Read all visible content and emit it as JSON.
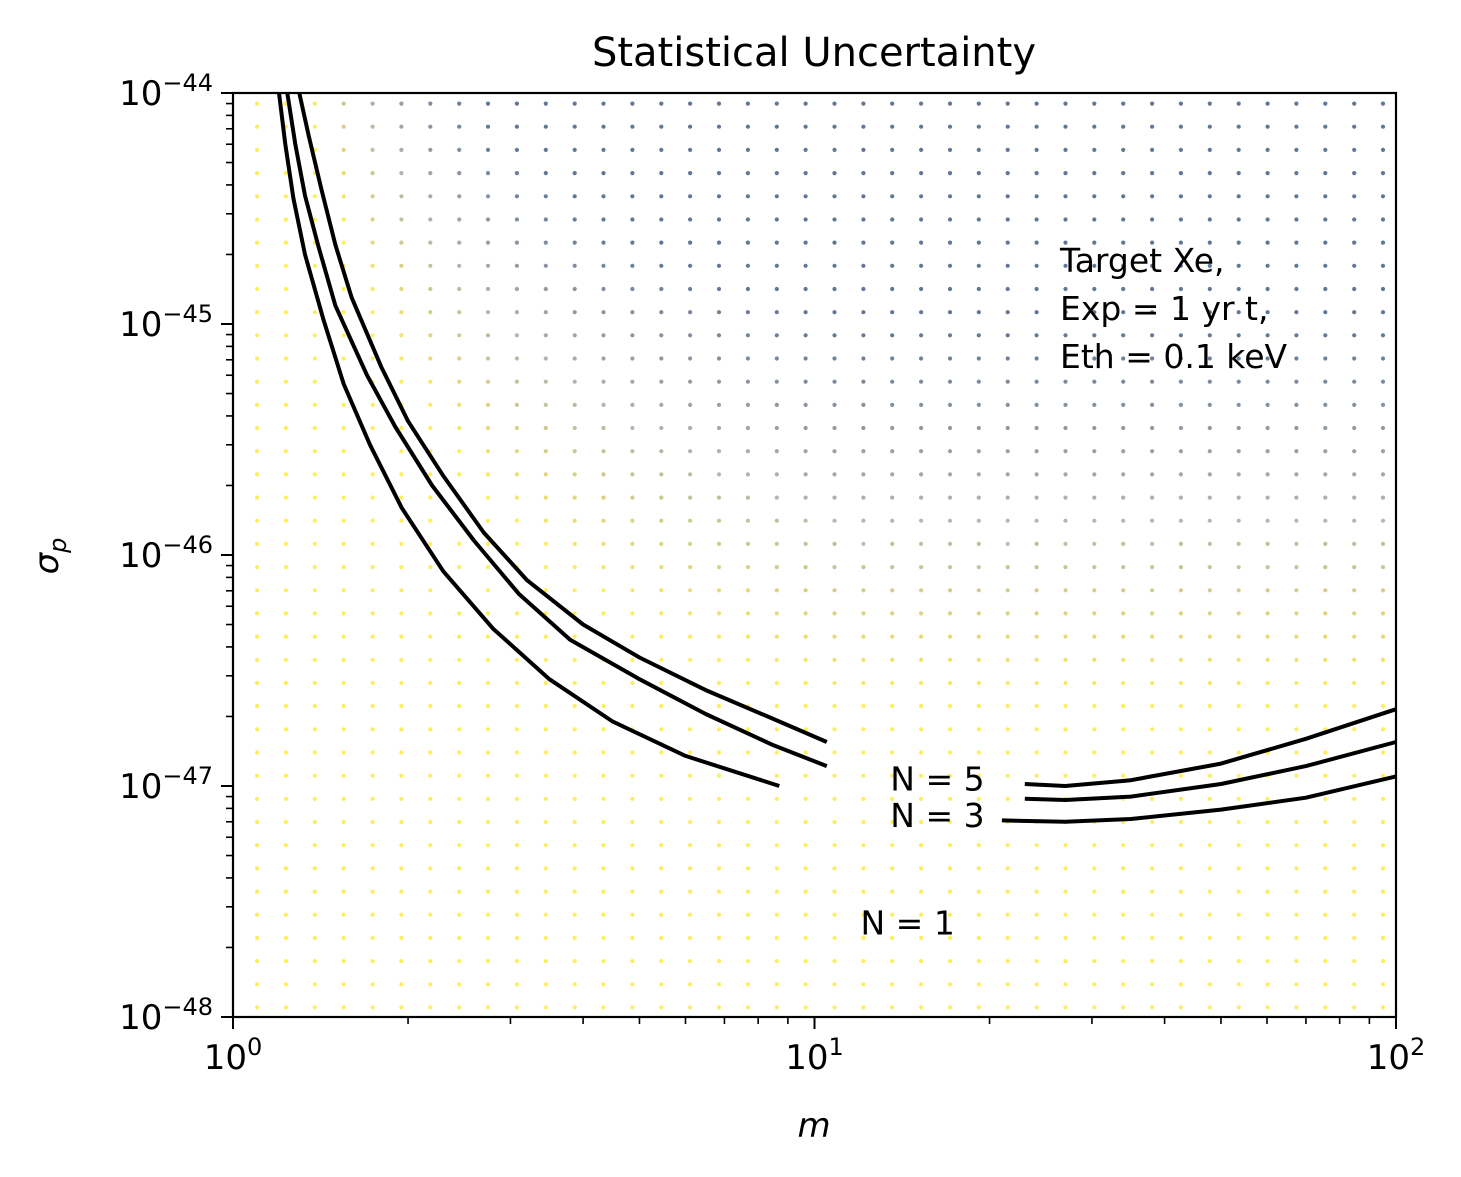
{
  "chart_data": {
    "type": "scatter",
    "title": "Statistical Uncertainty",
    "xlabel": "m",
    "ylabel": "σ",
    "ylabel_subscript": "p",
    "xscale": "log",
    "yscale": "log",
    "xlim": [
      1,
      100
    ],
    "ylim": [
      1e-48,
      1e-44
    ],
    "x_ticks": [
      {
        "base": "10",
        "exp": "0"
      },
      {
        "base": "10",
        "exp": "1"
      },
      {
        "base": "10",
        "exp": "2"
      }
    ],
    "y_ticks": [
      {
        "base": "10",
        "exp": "−48"
      },
      {
        "base": "10",
        "exp": "−47"
      },
      {
        "base": "10",
        "exp": "−46"
      },
      {
        "base": "10",
        "exp": "−45"
      },
      {
        "base": "10",
        "exp": "−44"
      }
    ],
    "annotation_lines": [
      "Target Xe,",
      "Exp = 1 yr t,",
      "Eth = 0.1 keV"
    ],
    "background_grid": {
      "description": "dense dot grid colored by uncertainty",
      "x_range": [
        1.1,
        95
      ],
      "y_range": [
        1.1e-48,
        9e-45
      ],
      "low_color": "#fde725",
      "high_color": "#2c4a74"
    },
    "series": [
      {
        "name": "N = 5",
        "label": "N = 5",
        "segments": [
          [
            [
              1.3,
              1e-44
            ],
            [
              1.35,
              6.5e-45
            ],
            [
              1.42,
              3.8e-45
            ],
            [
              1.5,
              2.2e-45
            ],
            [
              1.6,
              1.3e-45
            ],
            [
              1.8,
              6.5e-46
            ],
            [
              2.0,
              3.8e-46
            ],
            [
              2.3,
              2.2e-46
            ],
            [
              2.7,
              1.25e-46
            ],
            [
              3.2,
              7.8e-47
            ],
            [
              4.0,
              5e-47
            ],
            [
              5.0,
              3.6e-47
            ],
            [
              6.5,
              2.6e-47
            ],
            [
              8.5,
              1.95e-47
            ],
            [
              10.5,
              1.55e-47
            ]
          ],
          [
            [
              23,
              1.02e-47
            ],
            [
              27,
              1e-47
            ],
            [
              35,
              1.06e-47
            ],
            [
              50,
              1.25e-47
            ],
            [
              70,
              1.6e-47
            ],
            [
              100,
              2.15e-47
            ]
          ]
        ]
      },
      {
        "name": "N = 3",
        "label": "N = 3",
        "segments": [
          [
            [
              1.24,
              1e-44
            ],
            [
              1.28,
              6e-45
            ],
            [
              1.33,
              3.6e-45
            ],
            [
              1.4,
              2.2e-45
            ],
            [
              1.5,
              1.2e-45
            ],
            [
              1.7,
              6e-46
            ],
            [
              1.9,
              3.6e-46
            ],
            [
              2.2,
              2e-46
            ],
            [
              2.6,
              1.15e-46
            ],
            [
              3.1,
              6.8e-47
            ],
            [
              3.8,
              4.3e-47
            ],
            [
              5.0,
              2.9e-47
            ],
            [
              6.5,
              2.05e-47
            ],
            [
              8.5,
              1.5e-47
            ],
            [
              10.5,
              1.22e-47
            ]
          ],
          [
            [
              23,
              8.8e-48
            ],
            [
              27,
              8.7e-48
            ],
            [
              35,
              9e-48
            ],
            [
              50,
              1.02e-47
            ],
            [
              70,
              1.22e-47
            ],
            [
              100,
              1.55e-47
            ]
          ]
        ]
      },
      {
        "name": "N = 1",
        "label": "N = 1",
        "segments": [
          [
            [
              1.2,
              1e-44
            ],
            [
              1.23,
              6e-45
            ],
            [
              1.27,
              3.5e-45
            ],
            [
              1.33,
              2e-45
            ],
            [
              1.43,
              1.05e-45
            ],
            [
              1.55,
              5.5e-46
            ],
            [
              1.72,
              3e-46
            ],
            [
              1.95,
              1.6e-46
            ],
            [
              2.3,
              8.5e-47
            ],
            [
              2.8,
              4.8e-47
            ],
            [
              3.5,
              2.9e-47
            ],
            [
              4.5,
              1.9e-47
            ],
            [
              6.0,
              1.35e-47
            ],
            [
              8.7,
              1e-47
            ]
          ],
          [
            [
              21,
              7.1e-48
            ],
            [
              27,
              7e-48
            ],
            [
              35,
              7.2e-48
            ],
            [
              50,
              7.9e-48
            ],
            [
              70,
              8.9e-48
            ],
            [
              100,
              1.1e-47
            ]
          ]
        ]
      }
    ]
  }
}
